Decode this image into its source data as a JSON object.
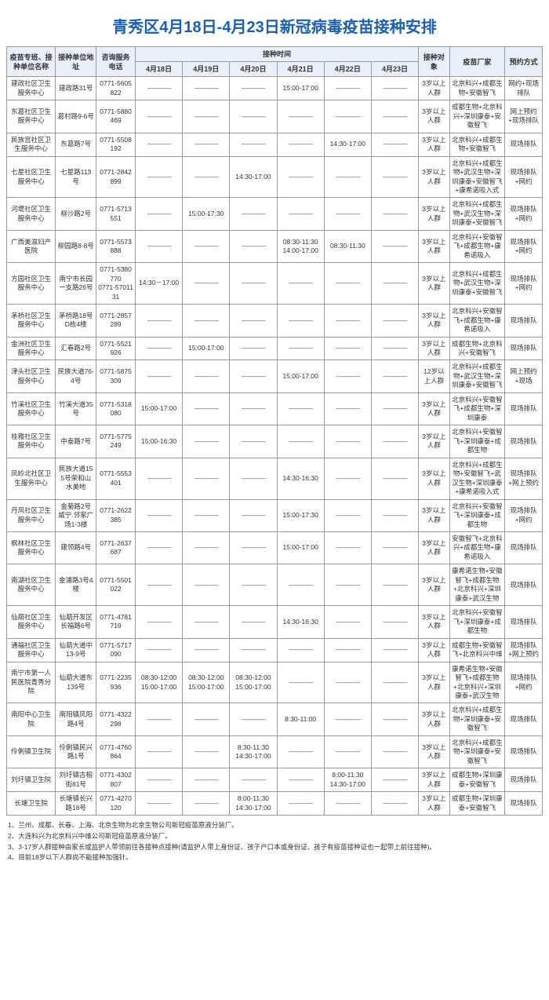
{
  "title": "青秀区4月18日-4月23日新冠病毒疫苗接种安排",
  "headers": {
    "name": "疫苗专班、接种单位名称",
    "address": "接种单位地址",
    "phone": "咨询服务电话",
    "time_group": "接种时间",
    "dates": [
      "4月18日",
      "4月19日",
      "4月20日",
      "4月21日",
      "4月22日",
      "4月23日"
    ],
    "target": "接种对象",
    "maker": "疫苗厂家",
    "booking": "预约方式"
  },
  "dash": "————",
  "rows": [
    {
      "name": "建政社区卫生服务中心",
      "addr": "建政路31号",
      "phone": "0771-5605822",
      "times": [
        "",
        "",
        "",
        "15:00-17:00",
        "",
        ""
      ],
      "target": "3岁以上人群",
      "maker": "北京科兴+成都生物+安徽智飞",
      "book": "网约+现场排队"
    },
    {
      "name": "东葛社区卫生服务中心",
      "addr": "葛村路9-6号",
      "phone": "0771-5880469",
      "times": [
        "",
        "",
        "",
        "",
        "",
        ""
      ],
      "target": "3岁以上人群",
      "maker": "成都生物+北京科兴+深圳康泰+安徽智飞",
      "book": "网上预约+现场排队"
    },
    {
      "name": "民族宫社区卫生服务中心",
      "addr": "东葛路7号",
      "phone": "0771-5508192",
      "times": [
        "",
        "",
        "",
        "",
        "14:30-17:00",
        ""
      ],
      "target": "3岁以上人群",
      "maker": "北京科兴+成都生物+安徽智飞",
      "book": "现场排队"
    },
    {
      "name": "七星社区卫生服务中心",
      "addr": "七星路113号",
      "phone": "0771-2842899",
      "times": [
        "",
        "",
        "14:30-17:00",
        "",
        "",
        ""
      ],
      "target": "3岁以上人群",
      "maker": "北京科兴+成都生物+武汉生物+深圳康泰+安徽智飞+康希诺吸入式",
      "book": "现场排队+网约"
    },
    {
      "name": "河堤社区卫生服务中心",
      "addr": "柳沙路2号",
      "phone": "0771-5713551",
      "times": [
        "",
        "15:00-17:30",
        "",
        "",
        "",
        ""
      ],
      "target": "3岁以上人群",
      "maker": "北京科兴+成都生物+武汉生物+深圳康泰+安徽智飞",
      "book": "现场排队+网约"
    },
    {
      "name": "广西美滋妇产医院",
      "addr": "柳园路8-8号",
      "phone": "0771-5573888",
      "times": [
        "",
        "",
        "",
        "08:30-11:30\n14:00-17:00",
        "08:30-11:30",
        ""
      ],
      "target": "3岁以上人群",
      "maker": "北京科兴+安徽智飞+成都生物+康希诺吸入",
      "book": "现场排队+网约"
    },
    {
      "name": "方园社区卫生服务中心",
      "addr": "南宁市长园一支路26号",
      "phone": "0771-5380770\n0771-5701131",
      "times": [
        "14:30－17:00",
        "",
        "",
        "",
        "",
        ""
      ],
      "target": "3岁以上人群",
      "maker": "北京科兴+成都生物+武汉生物+深圳康泰+安徽智飞",
      "book": "现场排队+网约"
    },
    {
      "name": "茅桥社区卫生服务中心",
      "addr": "茅桥路18号D栋4楼",
      "phone": "0771-2857289",
      "times": [
        "",
        "",
        "",
        "",
        "",
        ""
      ],
      "target": "3岁以上人群",
      "maker": "北京科兴+安徽智飞+成都生物+康希诺吸入",
      "book": "现场排队"
    },
    {
      "name": "金洲社区卫生服务中心",
      "addr": "汇春路2号",
      "phone": "0771-5521926",
      "times": [
        "",
        "15:00-17:00",
        "",
        "",
        "",
        ""
      ],
      "target": "3岁以上人群",
      "maker": "成都生物+北京科兴+安徽智飞",
      "book": "现场排队"
    },
    {
      "name": "津头社区卫生服务中心",
      "addr": "民族大道76-4号",
      "phone": "0771-5875309",
      "times": [
        "",
        "",
        "",
        "15:00-17:00",
        "",
        ""
      ],
      "target": "12岁以上人群",
      "maker": "北京科兴+成都生物+武汉生物+深圳康泰+安徽智飞",
      "book": "网上预约+现场"
    },
    {
      "name": "竹溪社区卫生服务中心",
      "addr": "竹溪大道35号",
      "phone": "0771-5318080",
      "times": [
        "15:00-17:00",
        "",
        "",
        "",
        "",
        ""
      ],
      "target": "3岁以上人群",
      "maker": "北京科兴+安徽智飞+成都生物+深圳康泰",
      "book": "现场排队"
    },
    {
      "name": "桂雅社区卫生服务中心",
      "addr": "中泰路7号",
      "phone": "0771-5775249",
      "times": [
        "15:00-16:30",
        "",
        "",
        "",
        "",
        ""
      ],
      "target": "3岁以上人群",
      "maker": "北京科兴+安徽智飞+深圳康泰+成都生物",
      "book": "现场排队"
    },
    {
      "name": "凤岭北社区卫生服务中心",
      "addr": "民族大道155号荣和山水美地",
      "phone": "0771-5553401",
      "times": [
        "",
        "",
        "",
        "14:30-16:30",
        "",
        ""
      ],
      "target": "3岁以上人群",
      "maker": "北京科兴+成都生物+安徽智飞+武汉生物+深圳康泰+康希诺吸入式",
      "book": "现场排队+网上预约"
    },
    {
      "name": "丹凤社区卫生服务中心",
      "addr": "金菊路2号威宁.邻家广场1-3楼",
      "phone": "0771-2622385",
      "times": [
        "",
        "",
        "",
        "15:00-17:30",
        "",
        ""
      ],
      "target": "3岁以上人群",
      "maker": "北京科兴+安徽智飞+深圳康泰+成都生物",
      "book": "现场排队+网约"
    },
    {
      "name": "枫林社区卫生服务中心",
      "addr": "建领路4号",
      "phone": "0771-2637687",
      "times": [
        "",
        "",
        "",
        "15:00-17:00",
        "",
        ""
      ],
      "target": "3岁以上人群",
      "maker": "安徽智飞+北京科兴+成都生物+康希诺吸入",
      "book": "现场排队"
    },
    {
      "name": "南湖社区卫生服务中心",
      "addr": "金浦路3号4楼",
      "phone": "0771-5501022",
      "times": [
        "",
        "",
        "",
        "",
        "",
        ""
      ],
      "target": "3岁以上人群",
      "maker": "康希诺生物+安徽智飞+成都生物+北京科兴+深圳康泰+武汉生物",
      "book": "现场排队"
    },
    {
      "name": "仙葫社区卫生服务中心",
      "addr": "仙葫开发区长福路6号",
      "phone": "0771-4781719",
      "times": [
        "",
        "",
        "",
        "14:30-16:30",
        "",
        ""
      ],
      "target": "3岁以上人群",
      "maker": "北京科兴+安徽智飞+深圳康泰+成都生物",
      "book": "现场排队"
    },
    {
      "name": "通福社区卫生服务中心",
      "addr": "仙葫大道中13-9号",
      "phone": "0771-5717090",
      "times": [
        "",
        "",
        "",
        "",
        "",
        ""
      ],
      "target": "3岁以上人群",
      "maker": "成都生物+安徽智飞+北京科兴中维",
      "book": "现场排队+网上预约"
    },
    {
      "name": "南宁市第一人民医院青秀分院",
      "addr": "仙葫大道东139号",
      "phone": "0771-2235936",
      "times": [
        "08:30-12:00\n15:00-17:00",
        "08:30-12:00\n15:00-17:00",
        "08:30-12:00\n15:00-17:00",
        "",
        "",
        ""
      ],
      "target": "3岁以上人群",
      "maker": "康希诺生物+安徽智飞+成都生物+北京科兴+深圳康泰+武汉生物",
      "book": "现场排队+网约"
    },
    {
      "name": "南阳中心卫生院",
      "addr": "南阳镇凤阳路4号",
      "phone": "0771-4322298",
      "times": [
        "",
        "",
        "",
        "8:30-11:00",
        "",
        ""
      ],
      "target": "3岁以上人群",
      "maker": "北京科兴+成都生物+深圳康泰+安徽智飞",
      "book": "现场排队"
    },
    {
      "name": "伶俐镇卫生院",
      "addr": "伶俐镇民兴路1号",
      "phone": "0771-4760864",
      "times": [
        "",
        "",
        "8:30-11:30\n14:30-17:00",
        "",
        "",
        ""
      ],
      "target": "3岁以上人群",
      "maker": "北京科兴+成都生物+深圳康泰+安徽智飞",
      "book": "现场排队"
    },
    {
      "name": "刘圩镇卫生院",
      "addr": "刘圩镇古榕街81号",
      "phone": "0771-4302807",
      "times": [
        "",
        "",
        "",
        "",
        "8:00-11:30\n14:30-17:00",
        ""
      ],
      "target": "3岁以上人群",
      "maker": "成都生物+深圳康泰+安徽智飞",
      "book": "现场排队"
    },
    {
      "name": "长塘卫生院",
      "addr": "长塘镇长兴路18号",
      "phone": "0771-4270120",
      "times": [
        "",
        "",
        "8:00-11:30\n14:30-17:00",
        "",
        "",
        ""
      ],
      "target": "3岁以上人群",
      "maker": "成都生物+深圳康泰+安徽智飞",
      "book": "现场排队"
    }
  ],
  "footnotes": [
    "1、兰州、成都、长春、上海、北京生物为北京生物公司新冠疫苗原液分装厂。",
    "2、大连科兴为北京科兴中维公司新冠疫苗原液分装厂。",
    "3、3-17岁人群接种由家长或监护人带领前往各接种点接种(请监护人带上身份证、孩子户口本或身份证、孩子有疫苗接种证也一起带上前往接种)。",
    "4、目前18岁以下人群尚不能接种加强针。"
  ]
}
